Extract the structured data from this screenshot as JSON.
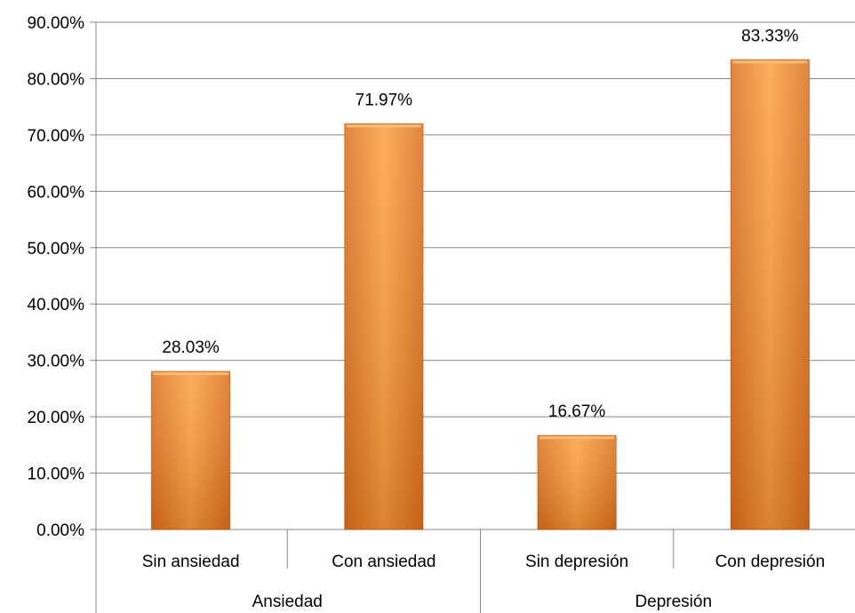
{
  "chart_data": {
    "type": "bar",
    "title": "",
    "xlabel": "",
    "ylabel": "",
    "ylim": [
      0,
      90
    ],
    "yticks": [
      "0.00%",
      "10.00%",
      "20.00%",
      "30.00%",
      "40.00%",
      "50.00%",
      "60.00%",
      "70.00%",
      "80.00%",
      "90.00%"
    ],
    "grid": true,
    "categories": [
      "Sin ansiedad",
      "Con ansiedad",
      "Sin depresión",
      "Con depresión"
    ],
    "groups": [
      {
        "label": "Ansiedad",
        "categories": [
          "Sin ansiedad",
          "Con ansiedad"
        ]
      },
      {
        "label": "Depresión",
        "categories": [
          "Sin depresión",
          "Con depresión"
        ]
      }
    ],
    "values": [
      28.03,
      71.97,
      16.67,
      83.33
    ],
    "data_labels": [
      "28.03%",
      "71.97%",
      "16.67%",
      "83.33%"
    ],
    "colors": {
      "bar_light": "#FBA040",
      "bar_dark": "#DC6F1C",
      "bar_edge": "#C8611A",
      "grid": "#868686"
    }
  }
}
